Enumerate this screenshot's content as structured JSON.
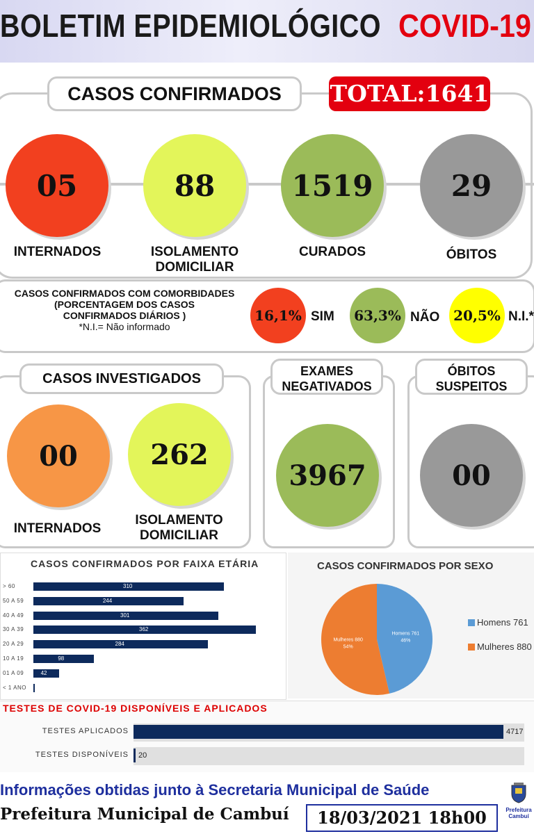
{
  "header": {
    "title": "BOLETIM EPIDEMIOLÓGICO",
    "covid": "COVID-19"
  },
  "confirmed": {
    "title": "CASOS CONFIRMADOS",
    "total": "TOTAL:1641",
    "items": [
      {
        "value": "05",
        "label": "INTERNADOS",
        "color": "#f2401f"
      },
      {
        "value": "88",
        "label": "ISOLAMENTO DOMICILIAR",
        "color": "#e3f55a"
      },
      {
        "value": "1519",
        "label": "CURADOS",
        "color": "#9bbb59"
      },
      {
        "value": "29",
        "label": "ÓBITOS",
        "color": "#999999"
      }
    ]
  },
  "comorbidities": {
    "line1": "CASOS CONFIRMADOS COM COMORBIDADES",
    "line2": "(PORCENTAGEM DOS CASOS",
    "line3": "CONFIRMADOS DIÁRIOS )",
    "line4": "*N.I.= Não informado",
    "items": [
      {
        "value": "16,1%",
        "label": "SIM",
        "color": "#f2401f"
      },
      {
        "value": "63,3%",
        "label": "NÃO",
        "color": "#9bbb59"
      },
      {
        "value": "20,5%",
        "label": "N.I.*",
        "color": "#ffff00"
      }
    ]
  },
  "investigated": {
    "title": "CASOS INVESTIGADOS",
    "items": [
      {
        "value": "00",
        "label": "INTERNADOS",
        "color": "#f79646"
      },
      {
        "value": "262",
        "label": "ISOLAMENTO DOMICILIAR",
        "color": "#e3f55a"
      }
    ]
  },
  "negative": {
    "title": "EXAMES NEGATIVADOS",
    "value": "3967",
    "color": "#9bbb59"
  },
  "suspect": {
    "title": "ÓBITOS SUSPEITOS",
    "value": "00",
    "color": "#999999"
  },
  "chart_data": [
    {
      "type": "bar",
      "title": "CASOS CONFIRMADOS POR FAIXA ETÁRIA",
      "orientation": "horizontal",
      "categories": [
        "> 60",
        "50 A 59",
        "40 A 49",
        "30 A 39",
        "20 A 29",
        "10 A 19",
        "01 A 09",
        "< 1 ANO"
      ],
      "values": [
        310,
        244,
        301,
        362,
        284,
        98,
        42,
        1
      ],
      "labels": [
        "310",
        "244",
        "301",
        "362",
        "284",
        "98",
        "42",
        ""
      ],
      "color": "#0d2a5c"
    },
    {
      "type": "pie",
      "title": "CASOS CONFIRMADOS POR SEXO",
      "slices": [
        {
          "name": "Homens 761",
          "value": 761,
          "pct": "46%",
          "color": "#5b9bd5"
        },
        {
          "name": "Mulheres 880",
          "value": 880,
          "pct": "54%",
          "color": "#ed7d31"
        }
      ],
      "legend": "right"
    },
    {
      "type": "bar",
      "title": "TESTES DE COVID-19 DISPONÍVEIS E APLICADOS",
      "orientation": "horizontal",
      "categories": [
        "TESTES APLICADOS",
        "TESTES DISPONÍVEIS"
      ],
      "values": [
        4717,
        20
      ],
      "labels": [
        "4717",
        "20"
      ],
      "color": "#0d2a5c"
    }
  ],
  "footer": {
    "line1": "Informações obtidas junto à Secretaria Municipal de Saúde",
    "line2": "Prefeitura Municipal de Cambuí",
    "date": "18/03/2021 18h00",
    "logo_text": "Prefeitura Cambuí"
  }
}
